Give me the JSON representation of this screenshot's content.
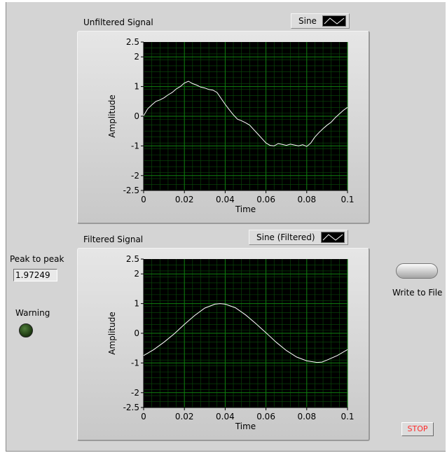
{
  "graphs": {
    "unfiltered": {
      "label": "Unfiltered Signal",
      "legend": "Sine",
      "ylabel": "Amplitude",
      "xlabel": "Time"
    },
    "filtered": {
      "label": "Filtered Signal",
      "legend": "Sine (Filtered)",
      "ylabel": "Amplitude",
      "xlabel": "Time"
    }
  },
  "controls": {
    "peak_label": "Peak to peak",
    "peak_value": "1.97249",
    "warning_label": "Warning",
    "write_label": "Write to File",
    "stop_label": "STOP"
  },
  "colors": {
    "panel": "#d4d4d4",
    "plot_bg": "#000000",
    "grid": "#0f7f0f",
    "trace": "#ffffff",
    "stop_text": "#ff2a2a"
  },
  "chart_data": [
    {
      "type": "line",
      "title": "Unfiltered Signal",
      "xlabel": "Time",
      "ylabel": "Amplitude",
      "xlim": [
        0,
        0.1
      ],
      "ylim": [
        -2.5,
        2.5
      ],
      "x_ticks": [
        "0",
        "0.02",
        "0.04",
        "0.06",
        "0.08",
        "0.1"
      ],
      "y_ticks": [
        "2.5",
        "2",
        "1",
        "0",
        "-1",
        "-2",
        "-2.5"
      ],
      "grid": true,
      "series": [
        {
          "name": "Sine",
          "x": [
            0,
            0.002,
            0.004,
            0.006,
            0.008,
            0.01,
            0.012,
            0.014,
            0.016,
            0.018,
            0.02,
            0.022,
            0.024,
            0.026,
            0.028,
            0.03,
            0.032,
            0.034,
            0.036,
            0.038,
            0.04,
            0.042,
            0.044,
            0.046,
            0.048,
            0.05,
            0.052,
            0.054,
            0.056,
            0.058,
            0.06,
            0.062,
            0.064,
            0.066,
            0.068,
            0.07,
            0.072,
            0.074,
            0.076,
            0.078,
            0.08,
            0.082,
            0.084,
            0.086,
            0.088,
            0.09,
            0.092,
            0.094,
            0.096,
            0.098,
            0.1
          ],
          "y": [
            0.02,
            0.25,
            0.38,
            0.5,
            0.55,
            0.62,
            0.72,
            0.8,
            0.92,
            1.0,
            1.12,
            1.18,
            1.1,
            1.05,
            0.98,
            0.95,
            0.9,
            0.88,
            0.8,
            0.6,
            0.4,
            0.22,
            0.05,
            -0.1,
            -0.15,
            -0.22,
            -0.3,
            -0.45,
            -0.6,
            -0.75,
            -0.9,
            -0.98,
            -1.0,
            -0.92,
            -0.95,
            -0.98,
            -0.94,
            -0.97,
            -1.0,
            -0.96,
            -1.02,
            -0.9,
            -0.7,
            -0.55,
            -0.42,
            -0.3,
            -0.2,
            -0.05,
            0.08,
            0.2,
            0.3
          ]
        }
      ]
    },
    {
      "type": "line",
      "title": "Filtered Signal",
      "xlabel": "Time",
      "ylabel": "Amplitude",
      "xlim": [
        0,
        0.1
      ],
      "ylim": [
        -2.5,
        2.5
      ],
      "x_ticks": [
        "0",
        "0.02",
        "0.04",
        "0.06",
        "0.08",
        "0.1"
      ],
      "y_ticks": [
        "2.5",
        "2",
        "1",
        "0",
        "-1",
        "-2",
        "-2.5"
      ],
      "grid": true,
      "series": [
        {
          "name": "Sine (Filtered)",
          "x": [
            0,
            0.005,
            0.01,
            0.015,
            0.02,
            0.025,
            0.03,
            0.035,
            0.0375,
            0.04,
            0.045,
            0.05,
            0.055,
            0.06,
            0.065,
            0.07,
            0.075,
            0.08,
            0.085,
            0.0875,
            0.09,
            0.095,
            0.1
          ],
          "y": [
            -0.75,
            -0.55,
            -0.3,
            -0.02,
            0.3,
            0.6,
            0.85,
            0.98,
            1.0,
            0.98,
            0.86,
            0.62,
            0.33,
            0.02,
            -0.3,
            -0.58,
            -0.8,
            -0.93,
            -0.98,
            -0.97,
            -0.9,
            -0.75,
            -0.55
          ]
        }
      ]
    }
  ]
}
